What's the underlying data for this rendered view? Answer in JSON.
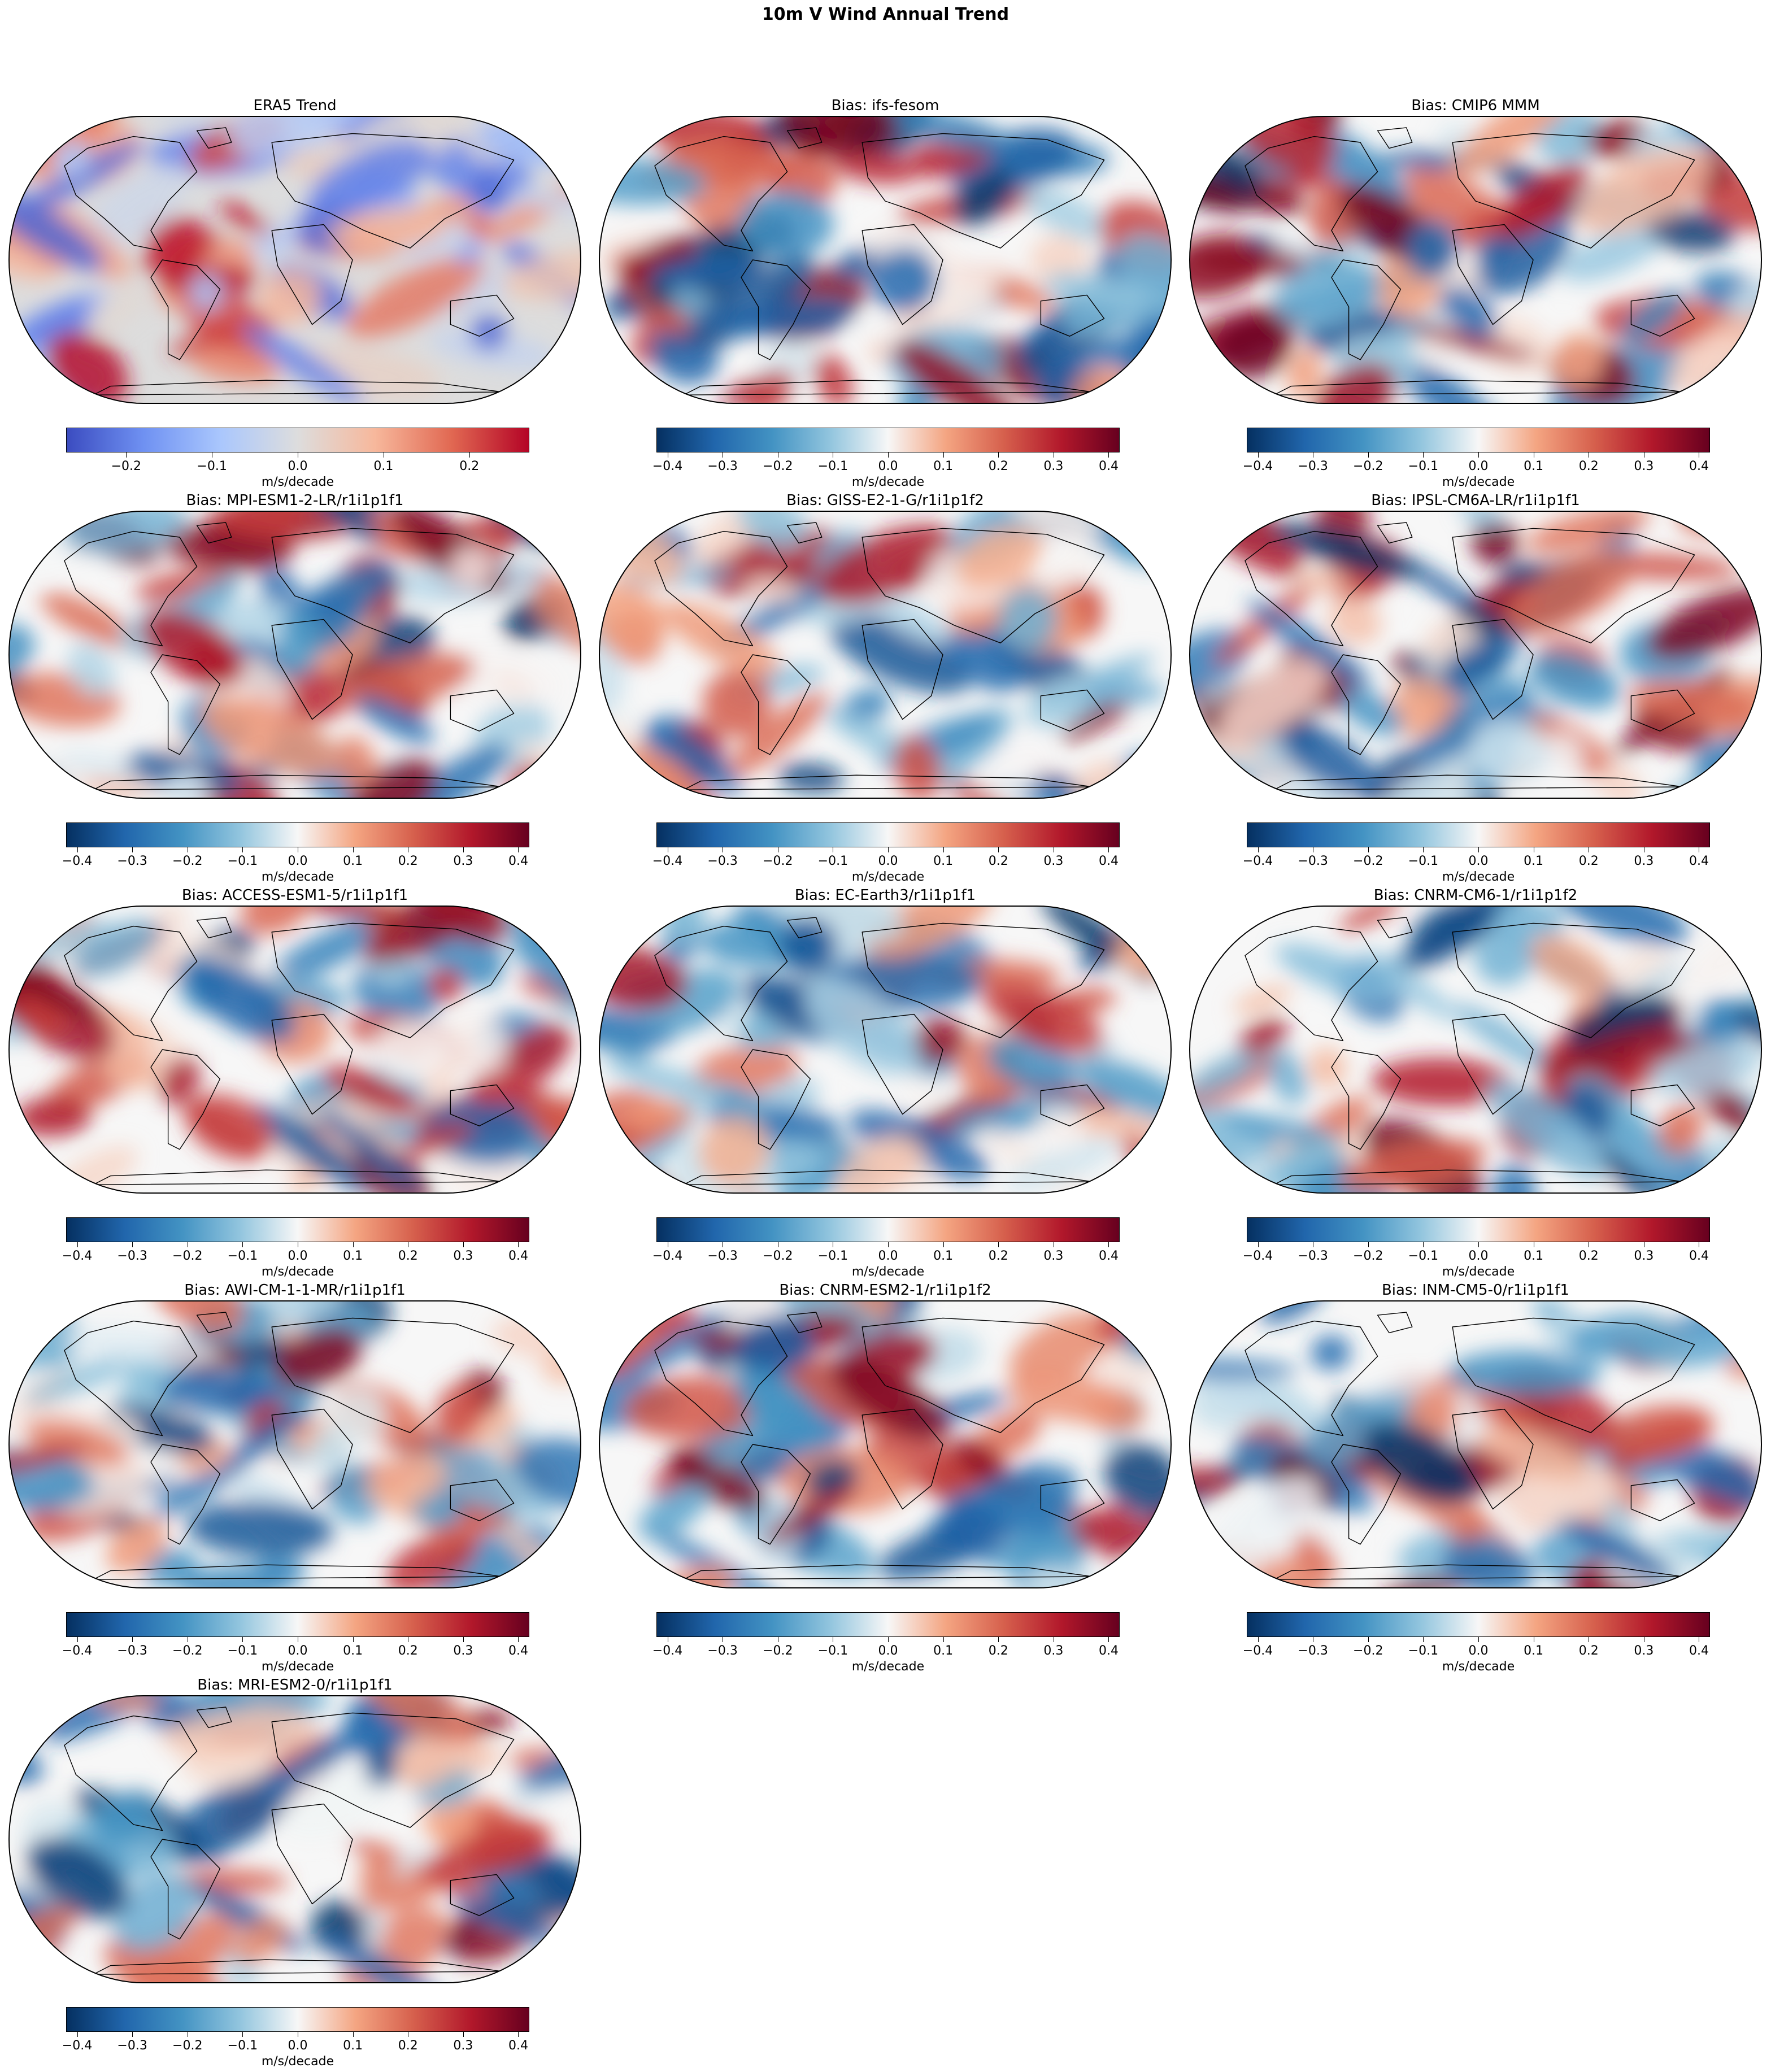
{
  "figure": {
    "title": "10m V Wind Annual Trend"
  },
  "panels": [
    {
      "title": "ERA5 Trend",
      "cmap": "coolwarm",
      "vmax": 0.27,
      "ticks": [
        "−0.2",
        "−0.1",
        "0.0",
        "0.1",
        "0.2"
      ],
      "tick_values": [
        -0.2,
        -0.1,
        0.0,
        0.1,
        0.2
      ],
      "unit": "m/s/decade",
      "seed": 11
    },
    {
      "title": "Bias: ifs-fesom",
      "cmap": "RdBu_r",
      "vmax": 0.42,
      "ticks": [
        "−0.4",
        "−0.3",
        "−0.2",
        "−0.1",
        "0.0",
        "0.1",
        "0.2",
        "0.3",
        "0.4"
      ],
      "tick_values": [
        -0.4,
        -0.3,
        -0.2,
        -0.1,
        0.0,
        0.1,
        0.2,
        0.3,
        0.4
      ],
      "unit": "m/s/decade",
      "seed": 23
    },
    {
      "title": "Bias: CMIP6 MMM",
      "cmap": "RdBu_r",
      "vmax": 0.42,
      "ticks": [
        "−0.4",
        "−0.3",
        "−0.2",
        "−0.1",
        "0.0",
        "0.1",
        "0.2",
        "0.3",
        "0.4"
      ],
      "tick_values": [
        -0.4,
        -0.3,
        -0.2,
        -0.1,
        0.0,
        0.1,
        0.2,
        0.3,
        0.4
      ],
      "unit": "m/s/decade",
      "seed": 37
    },
    {
      "title": "Bias: MPI-ESM1-2-LR/r1i1p1f1",
      "cmap": "RdBu_r",
      "vmax": 0.42,
      "ticks": [
        "−0.4",
        "−0.3",
        "−0.2",
        "−0.1",
        "0.0",
        "0.1",
        "0.2",
        "0.3",
        "0.4"
      ],
      "tick_values": [
        -0.4,
        -0.3,
        -0.2,
        -0.1,
        0.0,
        0.1,
        0.2,
        0.3,
        0.4
      ],
      "unit": "m/s/decade",
      "seed": 41
    },
    {
      "title": "Bias: GISS-E2-1-G/r1i1p1f2",
      "cmap": "RdBu_r",
      "vmax": 0.42,
      "ticks": [
        "−0.4",
        "−0.3",
        "−0.2",
        "−0.1",
        "0.0",
        "0.1",
        "0.2",
        "0.3",
        "0.4"
      ],
      "tick_values": [
        -0.4,
        -0.3,
        -0.2,
        -0.1,
        0.0,
        0.1,
        0.2,
        0.3,
        0.4
      ],
      "unit": "m/s/decade",
      "seed": 53
    },
    {
      "title": "Bias: IPSL-CM6A-LR/r1i1p1f1",
      "cmap": "RdBu_r",
      "vmax": 0.42,
      "ticks": [
        "−0.4",
        "−0.3",
        "−0.2",
        "−0.1",
        "0.0",
        "0.1",
        "0.2",
        "0.3",
        "0.4"
      ],
      "tick_values": [
        -0.4,
        -0.3,
        -0.2,
        -0.1,
        0.0,
        0.1,
        0.2,
        0.3,
        0.4
      ],
      "unit": "m/s/decade",
      "seed": 67
    },
    {
      "title": "Bias: ACCESS-ESM1-5/r1i1p1f1",
      "cmap": "RdBu_r",
      "vmax": 0.42,
      "ticks": [
        "−0.4",
        "−0.3",
        "−0.2",
        "−0.1",
        "0.0",
        "0.1",
        "0.2",
        "0.3",
        "0.4"
      ],
      "tick_values": [
        -0.4,
        -0.3,
        -0.2,
        -0.1,
        0.0,
        0.1,
        0.2,
        0.3,
        0.4
      ],
      "unit": "m/s/decade",
      "seed": 71
    },
    {
      "title": "Bias: EC-Earth3/r1i1p1f1",
      "cmap": "RdBu_r",
      "vmax": 0.42,
      "ticks": [
        "−0.4",
        "−0.3",
        "−0.2",
        "−0.1",
        "0.0",
        "0.1",
        "0.2",
        "0.3",
        "0.4"
      ],
      "tick_values": [
        -0.4,
        -0.3,
        -0.2,
        -0.1,
        0.0,
        0.1,
        0.2,
        0.3,
        0.4
      ],
      "unit": "m/s/decade",
      "seed": 83
    },
    {
      "title": "Bias: CNRM-CM6-1/r1i1p1f2",
      "cmap": "RdBu_r",
      "vmax": 0.42,
      "ticks": [
        "−0.4",
        "−0.3",
        "−0.2",
        "−0.1",
        "0.0",
        "0.1",
        "0.2",
        "0.3",
        "0.4"
      ],
      "tick_values": [
        -0.4,
        -0.3,
        -0.2,
        -0.1,
        0.0,
        0.1,
        0.2,
        0.3,
        0.4
      ],
      "unit": "m/s/decade",
      "seed": 97
    },
    {
      "title": "Bias: AWI-CM-1-1-MR/r1i1p1f1",
      "cmap": "RdBu_r",
      "vmax": 0.42,
      "ticks": [
        "−0.4",
        "−0.3",
        "−0.2",
        "−0.1",
        "0.0",
        "0.1",
        "0.2",
        "0.3",
        "0.4"
      ],
      "tick_values": [
        -0.4,
        -0.3,
        -0.2,
        -0.1,
        0.0,
        0.1,
        0.2,
        0.3,
        0.4
      ],
      "unit": "m/s/decade",
      "seed": 101
    },
    {
      "title": "Bias: CNRM-ESM2-1/r1i1p1f2",
      "cmap": "RdBu_r",
      "vmax": 0.42,
      "ticks": [
        "−0.4",
        "−0.3",
        "−0.2",
        "−0.1",
        "0.0",
        "0.1",
        "0.2",
        "0.3",
        "0.4"
      ],
      "tick_values": [
        -0.4,
        -0.3,
        -0.2,
        -0.1,
        0.0,
        0.1,
        0.2,
        0.3,
        0.4
      ],
      "unit": "m/s/decade",
      "seed": 113
    },
    {
      "title": "Bias: INM-CM5-0/r1i1p1f1",
      "cmap": "RdBu_r",
      "vmax": 0.42,
      "ticks": [
        "−0.4",
        "−0.3",
        "−0.2",
        "−0.1",
        "0.0",
        "0.1",
        "0.2",
        "0.3",
        "0.4"
      ],
      "tick_values": [
        -0.4,
        -0.3,
        -0.2,
        -0.1,
        0.0,
        0.1,
        0.2,
        0.3,
        0.4
      ],
      "unit": "m/s/decade",
      "seed": 127
    },
    {
      "title": "Bias: MRI-ESM2-0/r1i1p1f1",
      "cmap": "RdBu_r",
      "vmax": 0.42,
      "ticks": [
        "−0.4",
        "−0.3",
        "−0.2",
        "−0.1",
        "0.0",
        "0.1",
        "0.2",
        "0.3",
        "0.4"
      ],
      "tick_values": [
        -0.4,
        -0.3,
        -0.2,
        -0.1,
        0.0,
        0.1,
        0.2,
        0.3,
        0.4
      ],
      "unit": "m/s/decade",
      "seed": 131
    }
  ],
  "colormaps": {
    "coolwarm": [
      "#3b4cc0",
      "#6f91f2",
      "#aac7fd",
      "#dddddd",
      "#f7b89c",
      "#e16852",
      "#b40426"
    ],
    "RdBu_r": [
      "#053061",
      "#2166ac",
      "#4393c3",
      "#92c5de",
      "#f7f7f7",
      "#f4a582",
      "#d6604d",
      "#b2182b",
      "#67001f"
    ]
  }
}
